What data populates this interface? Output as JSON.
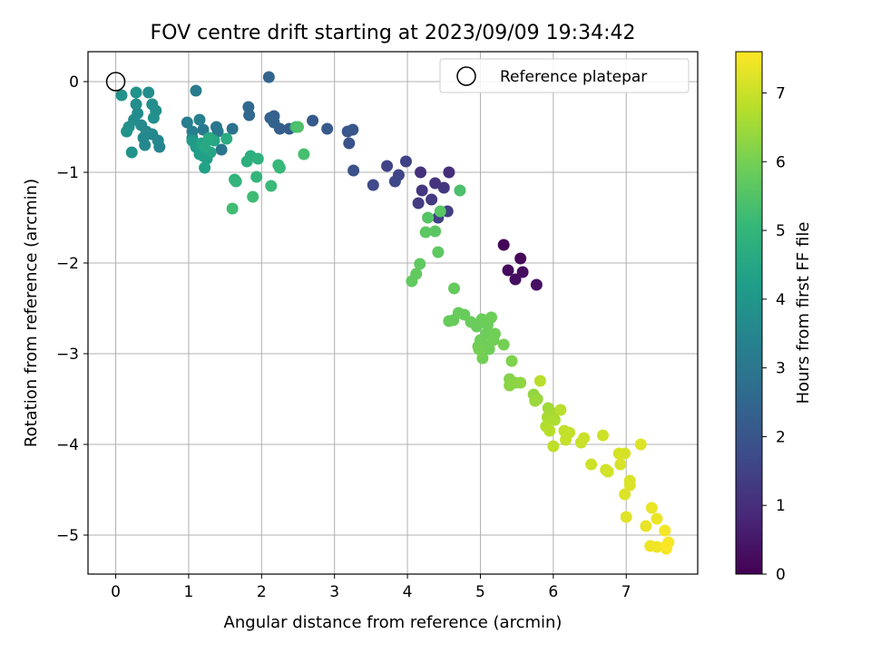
{
  "chart_data": {
    "type": "scatter",
    "title": "FOV centre drift starting at 2023/09/09 19:34:42",
    "xlabel": "Angular distance from reference (arcmin)",
    "ylabel": "Rotation from reference (arcmin)",
    "xlim": [
      -0.38,
      7.98
    ],
    "ylim": [
      -5.43,
      0.33
    ],
    "xticks": [
      0,
      1,
      2,
      3,
      4,
      5,
      6,
      7
    ],
    "yticks": [
      0,
      -1,
      -2,
      -3,
      -4,
      -5
    ],
    "grid": true,
    "legend": {
      "placement": "top-right",
      "label": "Reference platepar"
    },
    "reference_point": {
      "x": 0.0,
      "y": 0.0
    },
    "colorbar": {
      "label": "Hours from first FF file",
      "range": [
        0,
        7.6
      ],
      "ticks": [
        0,
        1,
        2,
        3,
        4,
        5,
        6,
        7
      ],
      "colormap": "viridis"
    },
    "series": [
      {
        "points": [
          [
            5.32,
            -1.8,
            0.1
          ],
          [
            5.55,
            -1.95,
            0.15
          ],
          [
            5.38,
            -2.08,
            0.2
          ],
          [
            5.58,
            -2.1,
            0.25
          ],
          [
            5.48,
            -2.18,
            0.3
          ],
          [
            5.77,
            -2.24,
            0.35
          ],
          [
            4.57,
            -1.0,
            1.0
          ],
          [
            4.18,
            -1.0,
            1.1
          ],
          [
            4.38,
            -1.12,
            1.15
          ],
          [
            4.2,
            -1.2,
            1.2
          ],
          [
            4.5,
            -1.17,
            1.25
          ],
          [
            4.33,
            -1.3,
            1.3
          ],
          [
            4.15,
            -1.34,
            1.35
          ],
          [
            4.55,
            -1.43,
            1.4
          ],
          [
            4.42,
            -1.5,
            1.45
          ],
          [
            3.98,
            -0.88,
            1.5
          ],
          [
            3.72,
            -0.93,
            1.55
          ],
          [
            3.88,
            -1.03,
            1.6
          ],
          [
            3.83,
            -1.1,
            1.65
          ],
          [
            3.53,
            -1.14,
            1.7
          ],
          [
            3.26,
            -0.98,
            1.9
          ],
          [
            3.2,
            -0.68,
            1.95
          ],
          [
            3.18,
            -0.55,
            2.0
          ],
          [
            3.25,
            -0.53,
            2.05
          ],
          [
            2.9,
            -0.52,
            2.1
          ],
          [
            2.7,
            -0.43,
            2.15
          ],
          [
            2.38,
            -0.52,
            2.2
          ],
          [
            2.25,
            -0.52,
            2.25
          ],
          [
            2.17,
            -0.38,
            2.3
          ],
          [
            2.12,
            -0.4,
            2.35
          ],
          [
            2.17,
            -0.45,
            2.4
          ],
          [
            2.1,
            0.05,
            2.45
          ],
          [
            1.83,
            -0.37,
            2.5
          ],
          [
            1.82,
            -0.28,
            2.55
          ],
          [
            1.6,
            -0.52,
            2.9
          ],
          [
            1.45,
            -0.75,
            2.95
          ],
          [
            1.38,
            -0.5,
            3.0
          ],
          [
            1.4,
            -0.55,
            3.05
          ],
          [
            1.2,
            -0.53,
            3.1
          ],
          [
            1.1,
            -0.1,
            3.15
          ],
          [
            0.98,
            -0.45,
            3.2
          ],
          [
            1.05,
            -0.55,
            3.25
          ],
          [
            1.15,
            -0.42,
            3.3
          ],
          [
            1.05,
            -0.62,
            3.35
          ],
          [
            1.12,
            -0.7,
            3.4
          ],
          [
            0.6,
            -0.72,
            3.45
          ],
          [
            0.58,
            -0.65,
            3.5
          ],
          [
            0.5,
            -0.58,
            3.5
          ],
          [
            0.42,
            -0.55,
            3.55
          ],
          [
            0.4,
            -0.7,
            3.55
          ],
          [
            0.38,
            -0.62,
            3.6
          ],
          [
            0.35,
            -0.48,
            3.6
          ],
          [
            0.3,
            -0.35,
            3.65
          ],
          [
            0.25,
            -0.42,
            3.65
          ],
          [
            0.28,
            -0.25,
            3.7
          ],
          [
            0.45,
            -0.12,
            3.7
          ],
          [
            0.55,
            -0.32,
            3.75
          ],
          [
            0.5,
            -0.25,
            3.75
          ],
          [
            0.52,
            -0.4,
            3.8
          ],
          [
            0.18,
            -0.5,
            3.8
          ],
          [
            0.15,
            -0.55,
            3.85
          ],
          [
            0.22,
            -0.78,
            3.85
          ],
          [
            0.08,
            -0.15,
            3.9
          ],
          [
            0.28,
            -0.12,
            3.9
          ],
          [
            1.05,
            -0.65,
            4.1
          ],
          [
            1.1,
            -0.72,
            4.15
          ],
          [
            1.15,
            -0.8,
            4.2
          ],
          [
            1.2,
            -0.82,
            4.25
          ],
          [
            1.25,
            -0.85,
            4.3
          ],
          [
            1.22,
            -0.95,
            4.35
          ],
          [
            1.18,
            -0.68,
            4.4
          ],
          [
            1.3,
            -0.78,
            4.45
          ],
          [
            1.35,
            -0.65,
            4.5
          ],
          [
            1.22,
            -0.72,
            4.55
          ],
          [
            1.28,
            -0.62,
            4.6
          ],
          [
            1.52,
            -0.63,
            4.65
          ],
          [
            1.85,
            -0.82,
            4.75
          ],
          [
            1.8,
            -0.88,
            4.8
          ],
          [
            1.95,
            -0.85,
            4.85
          ],
          [
            1.63,
            -1.08,
            4.9
          ],
          [
            1.65,
            -1.1,
            4.95
          ],
          [
            1.93,
            -1.05,
            5.0
          ],
          [
            2.23,
            -0.92,
            5.05
          ],
          [
            2.25,
            -0.95,
            5.1
          ],
          [
            2.13,
            -1.15,
            5.15
          ],
          [
            1.88,
            -1.27,
            5.2
          ],
          [
            1.6,
            -1.4,
            5.25
          ],
          [
            2.47,
            -0.5,
            5.3
          ],
          [
            2.58,
            -0.8,
            5.35
          ],
          [
            4.72,
            -1.2,
            5.4
          ],
          [
            2.5,
            -0.5,
            5.45
          ],
          [
            4.28,
            -1.5,
            5.55
          ],
          [
            4.45,
            -1.43,
            5.6
          ],
          [
            4.38,
            -1.65,
            5.62
          ],
          [
            4.25,
            -1.66,
            5.65
          ],
          [
            4.42,
            -1.88,
            5.68
          ],
          [
            4.17,
            -2.01,
            5.7
          ],
          [
            4.12,
            -2.12,
            5.72
          ],
          [
            4.06,
            -2.2,
            5.74
          ],
          [
            4.64,
            -2.28,
            5.76
          ],
          [
            4.57,
            -2.64,
            5.8
          ],
          [
            4.63,
            -2.63,
            5.8
          ],
          [
            4.7,
            -2.55,
            5.82
          ],
          [
            4.78,
            -2.57,
            5.82
          ],
          [
            4.87,
            -2.65,
            5.84
          ],
          [
            4.95,
            -2.7,
            5.84
          ],
          [
            5.02,
            -2.62,
            5.86
          ],
          [
            5.1,
            -2.68,
            5.86
          ],
          [
            5.15,
            -2.6,
            5.88
          ],
          [
            5.08,
            -2.78,
            5.88
          ],
          [
            5.0,
            -2.85,
            5.9
          ],
          [
            4.97,
            -2.92,
            5.9
          ],
          [
            5.05,
            -2.9,
            5.92
          ],
          [
            5.12,
            -2.95,
            5.92
          ],
          [
            5.18,
            -2.85,
            5.94
          ],
          [
            5.2,
            -2.78,
            5.94
          ],
          [
            5.03,
            -3.05,
            5.96
          ],
          [
            5.32,
            -2.9,
            5.98
          ],
          [
            4.98,
            -2.95,
            5.98
          ],
          [
            5.43,
            -3.08,
            6.1
          ],
          [
            5.4,
            -3.28,
            6.15
          ],
          [
            5.48,
            -3.32,
            6.2
          ],
          [
            5.4,
            -3.35,
            6.25
          ],
          [
            5.55,
            -3.32,
            6.3
          ],
          [
            5.73,
            -3.45,
            6.35
          ],
          [
            5.78,
            -3.5,
            6.4
          ],
          [
            5.75,
            -3.52,
            6.45
          ],
          [
            5.93,
            -3.6,
            6.5
          ],
          [
            5.98,
            -3.65,
            6.55
          ],
          [
            5.92,
            -3.7,
            6.6
          ],
          [
            6.02,
            -3.73,
            6.65
          ],
          [
            5.9,
            -3.8,
            6.7
          ],
          [
            5.95,
            -3.85,
            6.75
          ],
          [
            6.1,
            -3.62,
            6.8
          ],
          [
            5.82,
            -3.3,
            6.8
          ],
          [
            6.0,
            -4.02,
            6.85
          ],
          [
            6.15,
            -3.85,
            6.9
          ],
          [
            6.22,
            -3.87,
            6.92
          ],
          [
            6.17,
            -3.95,
            6.95
          ],
          [
            6.38,
            -3.98,
            6.98
          ],
          [
            6.42,
            -3.93,
            7.0
          ],
          [
            6.52,
            -4.22,
            7.02
          ],
          [
            6.68,
            -3.9,
            7.05
          ],
          [
            6.72,
            -4.28,
            7.08
          ],
          [
            6.75,
            -4.3,
            7.1
          ],
          [
            6.9,
            -4.1,
            7.12
          ],
          [
            6.98,
            -4.1,
            7.14
          ],
          [
            6.92,
            -4.22,
            7.16
          ],
          [
            7.05,
            -4.4,
            7.18
          ],
          [
            7.05,
            -4.45,
            7.2
          ],
          [
            6.98,
            -4.55,
            7.22
          ],
          [
            7.2,
            -4.0,
            7.24
          ],
          [
            7.0,
            -4.8,
            7.26
          ],
          [
            7.27,
            -4.9,
            7.35
          ],
          [
            7.35,
            -4.7,
            7.38
          ],
          [
            7.42,
            -4.82,
            7.4
          ],
          [
            7.33,
            -5.12,
            7.42
          ],
          [
            7.42,
            -5.13,
            7.45
          ],
          [
            7.53,
            -4.95,
            7.48
          ],
          [
            7.55,
            -5.15,
            7.5
          ],
          [
            7.58,
            -5.08,
            7.52
          ],
          [
            7.55,
            -5.12,
            7.55
          ]
        ]
      }
    ]
  }
}
